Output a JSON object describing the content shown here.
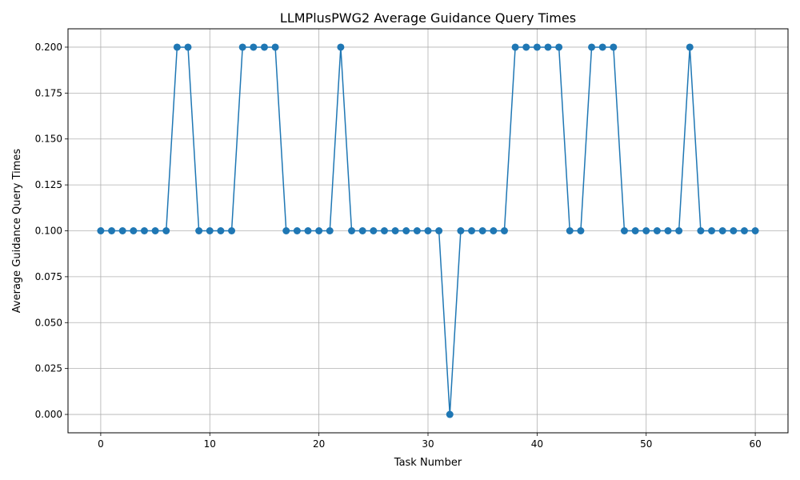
{
  "chart_data": {
    "type": "line",
    "title": "LLMPlusPWG2 Average Guidance Query Times",
    "xlabel": "Task Number",
    "ylabel": "Average Guidance Query Times",
    "xlim": [
      -3,
      63
    ],
    "ylim": [
      -0.01,
      0.21
    ],
    "xticks": [
      0,
      10,
      20,
      30,
      40,
      50,
      60
    ],
    "xtick_labels": [
      "0",
      "10",
      "20",
      "30",
      "40",
      "50",
      "60"
    ],
    "yticks": [
      0.0,
      0.025,
      0.05,
      0.075,
      0.1,
      0.125,
      0.15,
      0.175,
      0.2
    ],
    "ytick_labels": [
      "0.000",
      "0.025",
      "0.050",
      "0.075",
      "0.100",
      "0.125",
      "0.150",
      "0.175",
      "0.200"
    ],
    "grid": true,
    "marker": "circle",
    "color": "#1f77b4",
    "series": [
      {
        "x": [
          0,
          1,
          2,
          3,
          4,
          5,
          6,
          7,
          8,
          9,
          10,
          11,
          12,
          13,
          14,
          15,
          16,
          17,
          18,
          19,
          20,
          21,
          22,
          23,
          24,
          25,
          26,
          27,
          28,
          29,
          30,
          31,
          32,
          33,
          34,
          35,
          36,
          37,
          38,
          39,
          40,
          41,
          42,
          43,
          44,
          45,
          46,
          47,
          48,
          49,
          50,
          51,
          52,
          53,
          54,
          55,
          56,
          57,
          58,
          59,
          60
        ],
        "values": [
          0.1,
          0.1,
          0.1,
          0.1,
          0.1,
          0.1,
          0.1,
          0.2,
          0.2,
          0.1,
          0.1,
          0.1,
          0.1,
          0.2,
          0.2,
          0.2,
          0.2,
          0.1,
          0.1,
          0.1,
          0.1,
          0.1,
          0.2,
          0.1,
          0.1,
          0.1,
          0.1,
          0.1,
          0.1,
          0.1,
          0.1,
          0.1,
          0.0,
          0.1,
          0.1,
          0.1,
          0.1,
          0.1,
          0.2,
          0.2,
          0.2,
          0.2,
          0.2,
          0.1,
          0.1,
          0.2,
          0.2,
          0.2,
          0.1,
          0.1,
          0.1,
          0.1,
          0.1,
          0.1,
          0.2,
          0.1,
          0.1,
          0.1,
          0.1,
          0.1,
          0.1
        ]
      }
    ]
  }
}
